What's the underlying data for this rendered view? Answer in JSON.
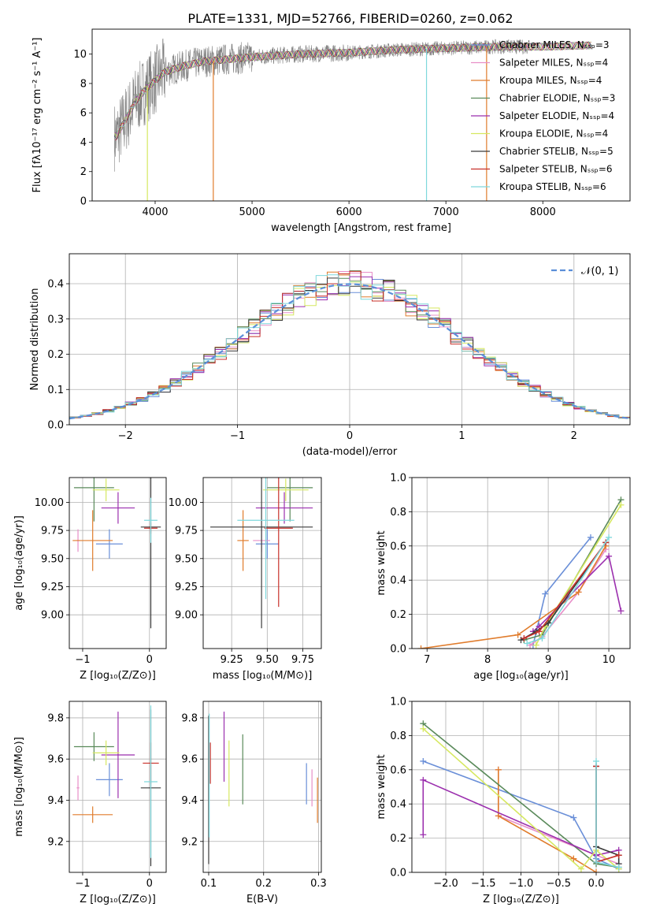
{
  "figure": {
    "title": "PLATE=1331, MJD=52766, FIBERID=0260, z=0.062"
  },
  "colors": {
    "c_miles": "#6a8fd8",
    "s_miles": "#e88fc8",
    "k_miles": "#e07c2c",
    "c_elodie": "#5a8a5a",
    "s_elodie": "#9b2fae",
    "k_elodie": "#d6e860",
    "c_stelib": "#3a3a3a",
    "s_stelib": "#c8302a",
    "k_stelib": "#7fd8dc",
    "data": "#808080",
    "normal": "#5b8fd8"
  },
  "chart_data": [
    {
      "id": "spectrum",
      "type": "line",
      "title": "PLATE=1331, MJD=52766, FIBERID=0260, z=0.062",
      "xlabel": "wavelength [Angstrom, rest frame]",
      "ylabel": "Flux [fλ10⁻¹⁷ erg cm⁻² s⁻¹ A⁻¹]",
      "xlim": [
        3350,
        8900
      ],
      "ylim": [
        0,
        11.7
      ],
      "xticks": [
        4000,
        5000,
        6000,
        7000,
        8000
      ],
      "yticks": [
        0,
        2,
        4,
        6,
        8,
        10
      ],
      "grid": false,
      "legend_position": "right",
      "legend": [
        "Chabrier MILES, N_SSP=3",
        "Salpeter MILES, N_SSP=4",
        "Kroupa MILES, N_SSP=4",
        "Chabrier ELODIE, N_SSP=3",
        "Salpeter ELODIE, N_SSP=4",
        "Kroupa ELODIE, N_SSP=4",
        "Chabrier STELIB, N_SSP=5",
        "Salpeter STELIB, N_SSP=6",
        "Kroupa STELIB, N_SSP=6"
      ],
      "data_series_range": [
        3580,
        7850
      ],
      "model_continuum": {
        "x": [
          3600,
          3700,
          3800,
          3900,
          4000,
          4100,
          4300,
          4500,
          5000,
          5500,
          6000,
          6500,
          7000,
          7500,
          7700,
          8000,
          8500
        ],
        "y": [
          4.4,
          5.6,
          6.8,
          7.6,
          8.2,
          8.8,
          9.2,
          9.5,
          9.8,
          10.0,
          10.1,
          10.3,
          10.4,
          10.5,
          10.5,
          10.5,
          10.6
        ]
      }
    },
    {
      "id": "residuals",
      "type": "line",
      "xlabel": "(data-model)/error",
      "ylabel": "Normed distribution",
      "xlim": [
        -2.5,
        2.5
      ],
      "ylim": [
        0,
        0.485
      ],
      "xticks": [
        -2,
        -1,
        0,
        1,
        2
      ],
      "yticks": [
        0.0,
        0.1,
        0.2,
        0.3,
        0.4
      ],
      "grid": true,
      "legend_position": "top-right",
      "legend": [
        "𝒩(0, 1)"
      ],
      "bin_width": 0.1,
      "bin_start": -2.5
    },
    {
      "id": "age_vs_Z",
      "type": "scatter",
      "xlabel": "Z [log₁₀(Z/Z⊙)]",
      "ylabel": "age  [log₁₀(age/yr)]",
      "xlim": [
        -1.2,
        0.25
      ],
      "ylim": [
        8.7,
        10.22
      ],
      "xticks": [
        -1,
        0
      ],
      "yticks": [
        9.0,
        9.25,
        9.5,
        9.75,
        10.0
      ],
      "grid": true,
      "points": [
        {
          "series": "c_miles",
          "x": -0.6,
          "y": 9.63,
          "xerr": 0.2,
          "yerr": 0.13
        },
        {
          "series": "s_miles",
          "x": -1.07,
          "y": 9.66,
          "xerr": 0.02,
          "yerr": 0.1
        },
        {
          "series": "k_miles",
          "x": -0.85,
          "y": 9.66,
          "xerr": 0.3,
          "yerr": 0.27
        },
        {
          "series": "c_elodie",
          "x": -0.83,
          "y": 10.13,
          "xerr": 0.3,
          "yerr": 0.3
        },
        {
          "series": "s_elodie",
          "x": -0.47,
          "y": 9.95,
          "xerr": 0.25,
          "yerr": 0.14
        },
        {
          "series": "k_elodie",
          "x": -0.65,
          "y": 10.11,
          "xerr": 0.2,
          "yerr": 0.1
        },
        {
          "series": "c_stelib",
          "x": 0.02,
          "y": 9.78,
          "xerr": 0.15,
          "yerr": 0.9
        },
        {
          "series": "s_stelib",
          "x": 0.02,
          "y": 9.77,
          "xerr": 0.1,
          "yerr": 0.05
        },
        {
          "series": "k_stelib",
          "x": 0.02,
          "y": 9.84,
          "xerr": 0.1,
          "yerr": 0.2
        }
      ]
    },
    {
      "id": "age_vs_mass",
      "type": "scatter",
      "xlabel": "mass [log₁₀(M/M⊙)]",
      "ylabel": "",
      "xlim": [
        9.05,
        9.88
      ],
      "ylim": [
        8.7,
        10.22
      ],
      "xticks": [
        9.25,
        9.5,
        9.75
      ],
      "yticks": [
        9.0,
        9.25,
        9.5,
        9.75,
        10.0
      ],
      "grid": true,
      "points": [
        {
          "series": "c_miles",
          "x": 9.5,
          "y": 9.63,
          "xerr": 0.08,
          "yerr": 0.13
        },
        {
          "series": "s_miles",
          "x": 9.46,
          "y": 9.66,
          "xerr": 0.06,
          "yerr": 0.1
        },
        {
          "series": "k_miles",
          "x": 9.33,
          "y": 9.66,
          "xerr": 0.04,
          "yerr": 0.27
        },
        {
          "series": "c_elodie",
          "x": 9.66,
          "y": 10.13,
          "xerr": 0.16,
          "yerr": 0.3
        },
        {
          "series": "s_elodie",
          "x": 9.62,
          "y": 9.95,
          "xerr": 0.2,
          "yerr": 0.14
        },
        {
          "series": "k_elodie",
          "x": 9.63,
          "y": 10.11,
          "xerr": 0.16,
          "yerr": 0.1
        },
        {
          "series": "c_stelib",
          "x": 9.46,
          "y": 9.78,
          "xerr": 0.36,
          "yerr": 0.9
        },
        {
          "series": "s_stelib",
          "x": 9.58,
          "y": 9.77,
          "xerr": 0.1,
          "yerr": 0.7
        },
        {
          "series": "k_stelib",
          "x": 9.49,
          "y": 9.84,
          "xerr": 0.2,
          "yerr": 0.7
        }
      ]
    },
    {
      "id": "weight_vs_age",
      "type": "line",
      "xlabel": "age  [log₁₀(age/yr)]",
      "ylabel": "mass weight",
      "xlim": [
        6.75,
        10.35
      ],
      "ylim": [
        0.0,
        1.0
      ],
      "xticks": [
        7,
        8,
        9,
        10
      ],
      "yticks": [
        0.0,
        0.2,
        0.4,
        0.6,
        0.8,
        1.0
      ],
      "grid": true,
      "series": [
        {
          "series": "c_miles",
          "x": [
            8.75,
            8.95,
            9.7
          ],
          "y": [
            0.02,
            0.32,
            0.65
          ]
        },
        {
          "series": "s_miles",
          "x": [
            8.7,
            8.9,
            9.5,
            9.95
          ],
          "y": [
            0.02,
            0.07,
            0.33,
            0.58
          ]
        },
        {
          "series": "k_miles",
          "x": [
            6.9,
            8.5,
            9.5,
            9.95
          ],
          "y": [
            0.0,
            0.08,
            0.33,
            0.6
          ]
        },
        {
          "series": "c_elodie",
          "x": [
            8.6,
            8.9,
            10.2
          ],
          "y": [
            0.05,
            0.08,
            0.87
          ]
        },
        {
          "series": "s_elodie",
          "x": [
            8.75,
            8.85,
            10.0,
            10.2
          ],
          "y": [
            0.1,
            0.13,
            0.54,
            0.22
          ]
        },
        {
          "series": "k_elodie",
          "x": [
            8.8,
            8.95,
            10.2
          ],
          "y": [
            0.02,
            0.13,
            0.84
          ]
        },
        {
          "series": "c_stelib",
          "x": [
            8.55,
            8.8,
            9.0,
            9.95
          ],
          "y": [
            0.05,
            0.1,
            0.15,
            0.62
          ]
        },
        {
          "series": "s_stelib",
          "x": [
            8.6,
            8.85,
            9.95
          ],
          "y": [
            0.06,
            0.1,
            0.62
          ]
        },
        {
          "series": "k_stelib",
          "x": [
            8.65,
            8.9,
            10.0
          ],
          "y": [
            0.03,
            0.06,
            0.65
          ]
        }
      ]
    },
    {
      "id": "mass_vs_Z",
      "type": "scatter",
      "xlabel": "Z [log₁₀(Z/Z⊙)]",
      "ylabel": "mass [log₁₀(M/M⊙)]",
      "xlim": [
        -1.2,
        0.25
      ],
      "ylim": [
        9.05,
        9.88
      ],
      "xticks": [
        -1,
        0
      ],
      "yticks": [
        9.2,
        9.4,
        9.6,
        9.8
      ],
      "grid": true,
      "points": [
        {
          "series": "c_miles",
          "x": -0.6,
          "y": 9.5,
          "xerr": 0.2,
          "yerr": 0.08
        },
        {
          "series": "s_miles",
          "x": -1.07,
          "y": 9.46,
          "xerr": 0.02,
          "yerr": 0.06
        },
        {
          "series": "k_miles",
          "x": -0.85,
          "y": 9.33,
          "xerr": 0.3,
          "yerr": 0.04
        },
        {
          "series": "c_elodie",
          "x": -0.83,
          "y": 9.66,
          "xerr": 0.3,
          "yerr": 0.07
        },
        {
          "series": "s_elodie",
          "x": -0.47,
          "y": 9.62,
          "xerr": 0.25,
          "yerr": 0.21
        },
        {
          "series": "k_elodie",
          "x": -0.65,
          "y": 9.63,
          "xerr": 0.2,
          "yerr": 0.06
        },
        {
          "series": "c_stelib",
          "x": 0.02,
          "y": 9.46,
          "xerr": 0.15,
          "yerr": 0.38
        },
        {
          "series": "s_stelib",
          "x": 0.02,
          "y": 9.58,
          "xerr": 0.12,
          "yerr": 0.1
        },
        {
          "series": "k_stelib",
          "x": 0.02,
          "y": 9.49,
          "xerr": 0.1,
          "yerr": 0.37
        }
      ]
    },
    {
      "id": "mass_vs_ebv",
      "type": "scatter",
      "xlabel": "E(B-V)",
      "ylabel": "",
      "xlim": [
        0.09,
        0.305
      ],
      "ylim": [
        9.05,
        9.88
      ],
      "xticks": [
        0.1,
        0.2,
        0.3
      ],
      "yticks": [
        9.2,
        9.4,
        9.6,
        9.8
      ],
      "grid": true,
      "points": [
        {
          "series": "c_miles",
          "x": 0.278,
          "y": 9.48,
          "yerr": 0.1
        },
        {
          "series": "s_miles",
          "x": 0.288,
          "y": 9.46,
          "yerr": 0.09
        },
        {
          "series": "k_miles",
          "x": 0.298,
          "y": 9.4,
          "yerr": 0.11
        },
        {
          "series": "c_elodie",
          "x": 0.162,
          "y": 9.55,
          "yerr": 0.17
        },
        {
          "series": "s_elodie",
          "x": 0.128,
          "y": 9.66,
          "yerr": 0.17
        },
        {
          "series": "k_elodie",
          "x": 0.137,
          "y": 9.53,
          "yerr": 0.16
        },
        {
          "series": "c_stelib",
          "x": 0.1,
          "y": 9.45,
          "yerr": 0.36
        },
        {
          "series": "s_stelib",
          "x": 0.103,
          "y": 9.58,
          "yerr": 0.1
        },
        {
          "series": "k_stelib",
          "x": 0.101,
          "y": 9.52,
          "yerr": 0.3
        }
      ]
    },
    {
      "id": "weight_vs_Z",
      "type": "line",
      "xlabel": "Z [log₁₀(Z/Z⊙)]",
      "ylabel": "mass weight",
      "xlim": [
        -2.45,
        0.45
      ],
      "ylim": [
        0.0,
        1.0
      ],
      "xticks": [
        -2.0,
        -1.5,
        -1.0,
        -0.5,
        0.0
      ],
      "yticks": [
        0.0,
        0.2,
        0.4,
        0.6,
        0.8,
        1.0
      ],
      "grid": true,
      "series": [
        {
          "series": "c_miles",
          "x": [
            -2.3,
            -0.3,
            0.0,
            0.3
          ],
          "y": [
            0.65,
            0.32,
            0.08,
            0.02
          ]
        },
        {
          "series": "s_miles",
          "x": [
            -1.3,
            -1.3,
            0.0,
            0.3
          ],
          "y": [
            0.6,
            0.33,
            0.1,
            0.05
          ]
        },
        {
          "series": "k_miles",
          "x": [
            -1.3,
            -1.3,
            -0.3,
            0.0
          ],
          "y": [
            0.6,
            0.33,
            0.08,
            0.0
          ]
        },
        {
          "series": "c_elodie",
          "x": [
            -2.3,
            0.0,
            0.3
          ],
          "y": [
            0.87,
            0.05,
            0.03
          ]
        },
        {
          "series": "s_elodie",
          "x": [
            -2.3,
            -2.3,
            0.0,
            0.3
          ],
          "y": [
            0.22,
            0.54,
            0.1,
            0.13
          ]
        },
        {
          "series": "k_elodie",
          "x": [
            -2.3,
            -0.2,
            0.0,
            0.3
          ],
          "y": [
            0.84,
            0.02,
            0.13,
            0.02
          ]
        },
        {
          "series": "c_stelib",
          "x": [
            0.0,
            0.0,
            0.3,
            0.3
          ],
          "y": [
            0.62,
            0.15,
            0.1,
            0.05
          ]
        },
        {
          "series": "s_stelib",
          "x": [
            0.0,
            0.0,
            0.3
          ],
          "y": [
            0.62,
            0.06,
            0.1
          ]
        },
        {
          "series": "k_stelib",
          "x": [
            0.0,
            0.0,
            0.3
          ],
          "y": [
            0.65,
            0.06,
            0.03
          ]
        }
      ]
    }
  ]
}
